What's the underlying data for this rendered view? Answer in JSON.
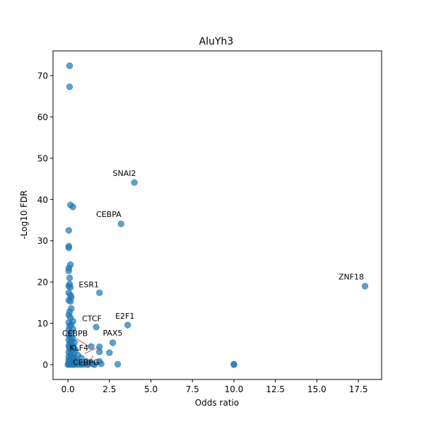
{
  "chart_data": {
    "type": "scatter",
    "title": "AluYh3",
    "xlabel": "Odds ratio",
    "ylabel": "-Log10 FDR",
    "xlim": [
      -0.9,
      18.9
    ],
    "ylim": [
      -3.6,
      76.0
    ],
    "xticks": [
      0,
      2.5,
      5,
      7.5,
      10,
      12.5,
      15,
      17.5
    ],
    "xtick_labels": [
      "0.0",
      "2.5",
      "5.0",
      "7.5",
      "10.0",
      "12.5",
      "15.0",
      "17.5"
    ],
    "yticks": [
      0,
      10,
      20,
      30,
      40,
      50,
      60,
      70
    ],
    "ytick_labels": [
      "0",
      "10",
      "20",
      "30",
      "40",
      "50",
      "60",
      "70"
    ],
    "grid": false,
    "point_color": "#1f77b4",
    "point_alpha": 0.7,
    "annotation_line_color": "#d62728",
    "points": [
      {
        "x": 0.1,
        "y": 72.4
      },
      {
        "x": 0.1,
        "y": 67.3
      },
      {
        "x": 4.0,
        "y": 44.1
      },
      {
        "x": 0.15,
        "y": 38.7
      },
      {
        "x": 0.3,
        "y": 38.2
      },
      {
        "x": 3.2,
        "y": 34.1
      },
      {
        "x": 0.05,
        "y": 32.5
      },
      {
        "x": 0.05,
        "y": 28.7
      },
      {
        "x": 0.05,
        "y": 28.3
      },
      {
        "x": 0.15,
        "y": 24.2
      },
      {
        "x": 0.05,
        "y": 23.4
      },
      {
        "x": 0.05,
        "y": 22.7
      },
      {
        "x": 0.1,
        "y": 21.0
      },
      {
        "x": 17.9,
        "y": 19.0
      },
      {
        "x": 0.1,
        "y": 19.5
      },
      {
        "x": 0.05,
        "y": 19.0
      },
      {
        "x": 0.15,
        "y": 18.7
      },
      {
        "x": 1.9,
        "y": 17.4
      },
      {
        "x": 0.05,
        "y": 17.4
      },
      {
        "x": 0.15,
        "y": 16.8
      },
      {
        "x": 0.2,
        "y": 16.3
      },
      {
        "x": 0.05,
        "y": 15.6
      },
      {
        "x": 0.15,
        "y": 15.3
      },
      {
        "x": 0.2,
        "y": 13.6
      },
      {
        "x": 0.1,
        "y": 12.8
      },
      {
        "x": 0.05,
        "y": 12.0
      },
      {
        "x": 0.15,
        "y": 11.4
      },
      {
        "x": 0.3,
        "y": 10.5
      },
      {
        "x": 0.05,
        "y": 10.2
      },
      {
        "x": 0.2,
        "y": 9.7
      },
      {
        "x": 3.6,
        "y": 9.6
      },
      {
        "x": 0.1,
        "y": 9.3
      },
      {
        "x": 1.7,
        "y": 9.1
      },
      {
        "x": 0.3,
        "y": 8.6
      },
      {
        "x": 0.05,
        "y": 8.4
      },
      {
        "x": 0.2,
        "y": 7.8
      },
      {
        "x": 0.05,
        "y": 7.2
      },
      {
        "x": 0.15,
        "y": 6.6
      },
      {
        "x": 0.3,
        "y": 6.3
      },
      {
        "x": 0.05,
        "y": 6.0
      },
      {
        "x": 0.2,
        "y": 5.6
      },
      {
        "x": 0.4,
        "y": 5.4
      },
      {
        "x": 2.7,
        "y": 5.3
      },
      {
        "x": 0.1,
        "y": 5.1
      },
      {
        "x": 0.25,
        "y": 4.8
      },
      {
        "x": 1.4,
        "y": 4.4
      },
      {
        "x": 1.9,
        "y": 4.3
      },
      {
        "x": 0.05,
        "y": 4.5
      },
      {
        "x": 0.3,
        "y": 4.2
      },
      {
        "x": 0.1,
        "y": 3.9
      },
      {
        "x": 0.45,
        "y": 3.6
      },
      {
        "x": 0.2,
        "y": 3.4
      },
      {
        "x": 1.9,
        "y": 3.1
      },
      {
        "x": 2.5,
        "y": 2.9
      },
      {
        "x": 0.05,
        "y": 3.0
      },
      {
        "x": 0.35,
        "y": 2.7
      },
      {
        "x": 0.15,
        "y": 2.5
      },
      {
        "x": 0.6,
        "y": 2.3
      },
      {
        "x": 0.25,
        "y": 2.1
      },
      {
        "x": 0.05,
        "y": 1.9
      },
      {
        "x": 0.4,
        "y": 1.7
      },
      {
        "x": 0.8,
        "y": 1.6
      },
      {
        "x": 0.15,
        "y": 1.5
      },
      {
        "x": 0.3,
        "y": 1.3
      },
      {
        "x": 0.05,
        "y": 1.1
      },
      {
        "x": 0.5,
        "y": 1.0
      },
      {
        "x": 0.2,
        "y": 0.9
      },
      {
        "x": 1.1,
        "y": 0.8
      },
      {
        "x": 1.9,
        "y": 0.8
      },
      {
        "x": 0.35,
        "y": 0.7
      },
      {
        "x": 0.05,
        "y": 0.6
      },
      {
        "x": 0.7,
        "y": 0.5
      },
      {
        "x": 0.15,
        "y": 0.4
      },
      {
        "x": 1.3,
        "y": 0.4
      },
      {
        "x": 0.45,
        "y": 0.35
      },
      {
        "x": 0.25,
        "y": 0.25
      },
      {
        "x": 0.9,
        "y": 0.2
      },
      {
        "x": 1.5,
        "y": 0.15
      },
      {
        "x": 2.0,
        "y": 0.2
      },
      {
        "x": 3.0,
        "y": 0.1
      },
      {
        "x": 0.05,
        "y": 0.1
      },
      {
        "x": 0.3,
        "y": 0.05
      },
      {
        "x": 0.6,
        "y": 0.0
      },
      {
        "x": 1.0,
        "y": 0.05
      },
      {
        "x": 1.2,
        "y": 0.0
      },
      {
        "x": 1.6,
        "y": 0.0
      },
      {
        "x": 10.0,
        "y": 0.1
      },
      {
        "x": 10.0,
        "y": 0.0
      },
      {
        "x": 0.0,
        "y": 0.0
      },
      {
        "x": 0.2,
        "y": 0.0
      },
      {
        "x": 0.4,
        "y": 0.0
      },
      {
        "x": 0.8,
        "y": 0.0
      }
    ],
    "annotations": [
      {
        "text": "SNAI2",
        "label_x": 2.7,
        "label_y": 45.7
      },
      {
        "text": "CEBPA",
        "label_x": 1.7,
        "label_y": 35.8
      },
      {
        "text": "ZNF18",
        "label_x": 16.3,
        "label_y": 20.6
      },
      {
        "text": "ESR1",
        "label_x": 0.65,
        "label_y": 18.7
      },
      {
        "text": "E2F1",
        "label_x": 2.85,
        "label_y": 11.1
      },
      {
        "text": "CTCF",
        "label_x": 0.85,
        "label_y": 10.5
      },
      {
        "text": "PAX5",
        "label_x": 2.1,
        "label_y": 7.0
      },
      {
        "text": "CEBPB",
        "label_x": -0.35,
        "label_y": 6.9,
        "line_to_x": 1.3,
        "line_to_y": 4.3
      },
      {
        "text": "KLF4",
        "label_x": 0.1,
        "label_y": 3.4,
        "line_to_x": 1.9,
        "line_to_y": 4.3
      },
      {
        "text": "CEBPG",
        "label_x": 0.3,
        "label_y": -0.1,
        "line_to_x": 1.5,
        "line_to_y": 2.2
      }
    ]
  }
}
